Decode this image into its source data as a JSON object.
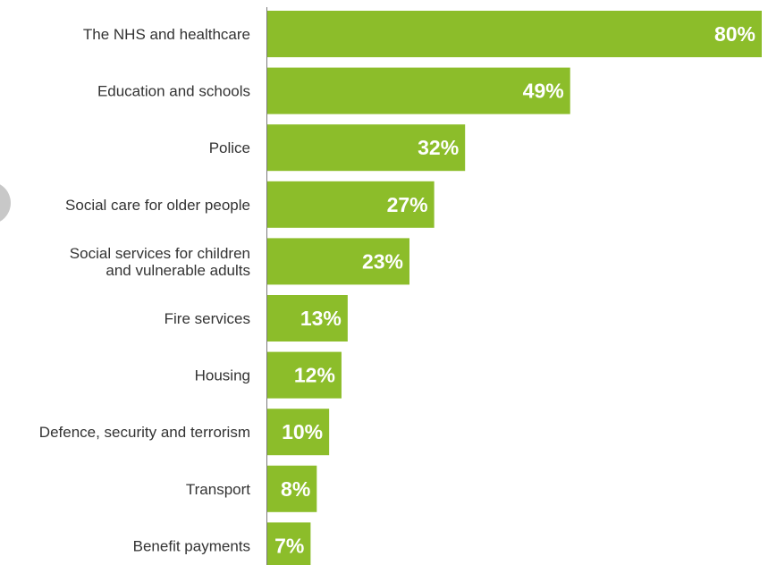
{
  "chart_data": {
    "type": "bar",
    "orientation": "horizontal",
    "categories": [
      "The NHS and healthcare",
      "Education and schools",
      "Police",
      "Social care for older people",
      "Social services for children and vulnerable adults",
      "Fire services",
      "Housing",
      "Defence, security and terrorism",
      "Transport",
      "Benefit payments"
    ],
    "category_label_lines": [
      [
        "The NHS and healthcare"
      ],
      [
        "Education and schools"
      ],
      [
        "Police"
      ],
      [
        "Social care for older people"
      ],
      [
        "Social services for children",
        "and vulnerable adults"
      ],
      [
        "Fire services"
      ],
      [
        "Housing"
      ],
      [
        "Defence, security and terrorism"
      ],
      [
        "Transport"
      ],
      [
        "Benefit payments"
      ]
    ],
    "values": [
      80,
      49,
      32,
      27,
      23,
      13,
      12,
      10,
      8,
      7
    ],
    "data_labels": [
      "80%",
      "49%",
      "32%",
      "27%",
      "23%",
      "13%",
      "12%",
      "10%",
      "8%",
      "7%"
    ],
    "unit": "%",
    "xlim": [
      0,
      80
    ],
    "grid": false,
    "legend": "none",
    "colors": {
      "bar": "#8cbd2a",
      "axis": "#7a7a7a",
      "label_text": "#333333",
      "value_text": "#ffffff",
      "edge_circle": "#c8c8c8"
    }
  }
}
